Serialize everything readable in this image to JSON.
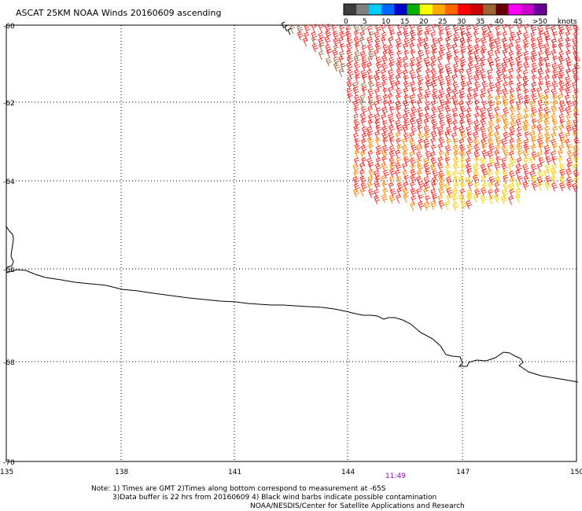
{
  "title": "ASCAT 25KM NOAA Winds 20160609 ascending",
  "legend": {
    "labels": [
      "0",
      "5",
      "10",
      "15",
      "20",
      "25",
      "30",
      "35",
      "40",
      "45",
      ">50"
    ],
    "unit": "knots",
    "colors": [
      "#3c3c3c",
      "#7f7f7f",
      "#00ccff",
      "#0066ff",
      "#0000cc",
      "#00b000",
      "#ffff00",
      "#ffaa00",
      "#ff6600",
      "#ff0000",
      "#cc0000",
      "#996633",
      "#660000",
      "#ff00ff",
      "#cc00cc",
      "#660099"
    ]
  },
  "lat_labels": [
    "-60",
    "-62",
    "-64",
    "-66",
    "-68",
    "-70"
  ],
  "lon_labels": [
    "135",
    "138",
    "141",
    "144",
    "147",
    "150"
  ],
  "time_label": "11:49",
  "notes": [
    "Note: 1) Times are GMT 2)Times along bottom correspond to measurement at -65S",
    "3)Data buffer is 22 hrs from 20160609 4) Black wind barbs indicate possible contamination",
    "NOAA/NESDIS/Center for Satellite Applications and Research"
  ]
}
